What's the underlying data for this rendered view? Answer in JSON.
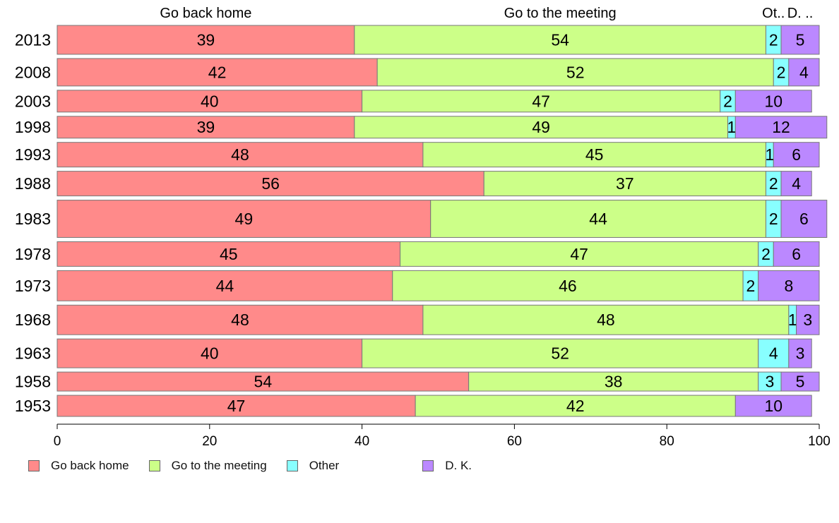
{
  "chart_data": {
    "type": "bar",
    "orientation": "horizontal",
    "stacked": true,
    "categories": [
      "2013",
      "2008",
      "2003",
      "1998",
      "1993",
      "1988",
      "1983",
      "1978",
      "1973",
      "1968",
      "1963",
      "1958",
      "1953"
    ],
    "category_weights": [
      41,
      39,
      31,
      31,
      35,
      35,
      53,
      35,
      43,
      42,
      41,
      27,
      30
    ],
    "series": [
      {
        "name": "Go back home",
        "short_label": "Go back home",
        "color": "#ff8a8a",
        "values": [
          39,
          42,
          40,
          39,
          48,
          56,
          49,
          45,
          44,
          48,
          40,
          54,
          47
        ]
      },
      {
        "name": "Go to the meeting",
        "short_label": "Go to the meeting",
        "color": "#ccff88",
        "values": [
          54,
          52,
          47,
          49,
          45,
          37,
          44,
          47,
          46,
          48,
          52,
          38,
          42
        ]
      },
      {
        "name": "Other",
        "short_label": "Ot..",
        "color": "#88ffff",
        "values": [
          2,
          2,
          2,
          1,
          1,
          2,
          2,
          2,
          2,
          1,
          4,
          3,
          0
        ]
      },
      {
        "name": "D. K.",
        "short_label": "D. ..",
        "color": "#bb88ff",
        "values": [
          5,
          4,
          10,
          12,
          6,
          4,
          6,
          6,
          8,
          3,
          3,
          5,
          10
        ]
      }
    ],
    "xlim": [
      0,
      100
    ],
    "xticks": [
      0,
      20,
      40,
      60,
      80,
      100
    ],
    "grid": false,
    "legend_position": "bottom-left"
  }
}
